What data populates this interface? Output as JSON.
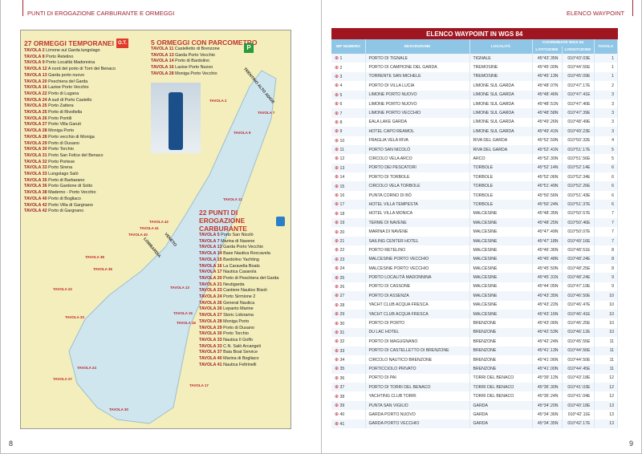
{
  "header": {
    "left": "PUNTI DI EROGAZIONE CARBURANTE E ORMEGGI",
    "right": "ELENCO WAYPOINT"
  },
  "page_numbers": {
    "left": "8",
    "right": "9"
  },
  "colors": {
    "brand_red": "#a01620",
    "header_blue": "#8fc6e6",
    "map_land": "#f4eebc",
    "map_water": "#cfe6ee"
  },
  "temporanei": {
    "title": "27 ORMEGGI TEMPORANEI",
    "badge": "O.T.",
    "items": [
      [
        "TAVOLA 2",
        "Limone sul Garda lungolago"
      ],
      [
        "TAVOLA 8",
        "Porto Retelino"
      ],
      [
        "TAVOLA 9",
        "Porto Località Madonnina"
      ],
      [
        "TAVOLA 12",
        "A nord del porto di Torri del Benaco"
      ],
      [
        "TAVOLA 13",
        "Garda porto nuovo"
      ],
      [
        "TAVOLA 20",
        "Peschiera del Garda"
      ],
      [
        "TAVOLA 16",
        "Lazise Porto Vecchio"
      ],
      [
        "TAVOLA 22",
        "Porto di Lugana"
      ],
      [
        "TAVOLA 24",
        "A sud di Porto Castello"
      ],
      [
        "TAVOLA 25",
        "Porto Zattera"
      ],
      [
        "TAVOLA 25",
        "Porto di Rivoltella"
      ],
      [
        "TAVOLA 26",
        "Porto Pontili"
      ],
      [
        "TAVOLA 27",
        "Porto Villa Garuti"
      ],
      [
        "TAVOLA 28",
        "Moniga Porto"
      ],
      [
        "TAVOLA 28",
        "Porto vecchio di Moniga"
      ],
      [
        "TAVOLA 29",
        "Porto di Dusano"
      ],
      [
        "TAVOLA 30",
        "Porto Torchio"
      ],
      [
        "TAVOLA 31",
        "Porto San Felice del Benaco"
      ],
      [
        "TAVOLA 32",
        "Porto Portese"
      ],
      [
        "TAVOLA 33",
        "Porto Sirena"
      ],
      [
        "TAVOLA 33",
        "Lungolago Salò"
      ],
      [
        "TAVOLA 35",
        "Porto di Barbarano"
      ],
      [
        "TAVOLA 36",
        "Porto Gardone di Sotto"
      ],
      [
        "TAVOLA 38",
        "Maderno - Porto Vecchio"
      ],
      [
        "TAVOLA 40",
        "Porto di Bogliaco"
      ],
      [
        "TAVOLA 42",
        "Porto Villa di Gargnano"
      ],
      [
        "TAVOLA 42",
        "Porto di Gargnano"
      ]
    ]
  },
  "parcometro": {
    "title": "5 ORMEGGI CON PARCOMETRO",
    "icon": "parking-icon",
    "items": [
      [
        "TAVOLA 11",
        "Castelletto di Brenzone"
      ],
      [
        "TAVOLA 13",
        "Garda Porto Vecchio"
      ],
      [
        "TAVOLA 14",
        "Porto di Bardolino"
      ],
      [
        "TAVOLA 16",
        "Lazise Porto Nuovo"
      ],
      [
        "TAVOLA 28",
        "Moniga Porto Vecchio"
      ]
    ]
  },
  "carburante": {
    "title": "22 PUNTI DI EROGAZIONE CARBURANTE",
    "icon": "fuel-pump-icon",
    "items": [
      [
        "TAVOLA 5",
        "Porto San Nicolò"
      ],
      [
        "TAVOLA 7",
        "Marina di Navene"
      ],
      [
        "TAVOLA 13",
        "Garda Porto Vecchio"
      ],
      [
        "TAVOLA 14",
        "Base Nautica Roccavela"
      ],
      [
        "TAVOLA 15",
        "Bardolino Yachting"
      ],
      [
        "TAVOLA 16",
        "La Caravella Boats"
      ],
      [
        "TAVOLA 17",
        "Nautica Casarola"
      ],
      [
        "TAVOLA 20",
        "Porto di Peschiera del Garda"
      ],
      [
        "TAVOLA 21",
        "Neutigarda"
      ],
      [
        "TAVOLA 23",
        "Cantiere Nautico Bisoli"
      ],
      [
        "TAVOLA 24",
        "Porto Sirmione 2"
      ],
      [
        "TAVOLA 26",
        "General Nautica"
      ],
      [
        "TAVOLA 26",
        "Lepanto Marine"
      ],
      [
        "TAVOLA 27",
        "Storic Lidorama"
      ],
      [
        "TAVOLA 28",
        "Moniga Porto"
      ],
      [
        "TAVOLA 29",
        "Porto di Dusano"
      ],
      [
        "TAVOLA 30",
        "Porto Torchio"
      ],
      [
        "TAVOLA 33",
        "Nautica Il Golfo"
      ],
      [
        "TAVOLA 33",
        "C.N. Salò Arcangeli"
      ],
      [
        "TAVOLA 37",
        "Baia Boat Service"
      ],
      [
        "TAVOLA 40",
        "Marina di Bogliaco"
      ],
      [
        "TAVOLA 41",
        "Nautica Feltrinelli"
      ]
    ]
  },
  "map_labels": [
    "TRENTINO ALTO ADIGE",
    "LOMBARDIA",
    "VENETO",
    "TAVOLA 2",
    "TAVOLA 7",
    "TAVOLA 9",
    "TAVOLA 11",
    "TAVOLA 42",
    "TAVOLA 41",
    "TAVOLA 40",
    "TAVOLA 13",
    "TAVOLA 15",
    "TAVOLA 16",
    "TAVOLA 17",
    "TAVOLA 22",
    "TAVOLA 24",
    "TAVOLA 27",
    "TAVOLA 30",
    "TAVOLA 33",
    "TAVOLA 36",
    "TAVOLA 38"
  ],
  "table": {
    "title": "ELENCO WAYPOINT IN WGS 84",
    "headers": {
      "num": "WP NUMERO",
      "desc": "DESCRIZIONE",
      "loc": "LOCALITÀ",
      "coord": "COORDINATE WGS 84",
      "lat": "LATITUDINE",
      "lon": "LONGITUDINE",
      "tav": "TAVOLA"
    },
    "rows": [
      [
        "1",
        "PORTO DI TIGNALE",
        "TIGNALE",
        "45°43'.35N",
        "010°43'.03E",
        "1"
      ],
      [
        "2",
        "PORTO DI CAMPIONE DEL GARDA",
        "TREMOSINE",
        "45°45'.00N",
        "010°44'.55E",
        "1"
      ],
      [
        "3",
        "TORRENTE SAN MICHELE",
        "TREMOSINE",
        "45°45'.13N",
        "010°45'.09E",
        "1"
      ],
      [
        "4",
        "PORTO DI VILLA LUCIA",
        "LIMONE SUL GARDA",
        "45°48'.07N",
        "010°47'.17E",
        "2"
      ],
      [
        "5",
        "LIMONE PORTO NUOVO",
        "LIMONE SUL GARDA",
        "45°48'.46N",
        "010°47'.41E",
        "3"
      ],
      [
        "6",
        "LIMONE PORTO NUOVO",
        "LIMONE SUL GARDA",
        "45°48'.51N",
        "010°47'.40E",
        "3"
      ],
      [
        "7",
        "LIMONE PORTO VECCHIO",
        "LIMONE SUL GARDA",
        "45°48'.58N",
        "010°47'.39E",
        "3"
      ],
      [
        "8",
        "EALA LAKE GARDA",
        "LIMONE SUL GARDA",
        "45°49'.26N",
        "010°48'.49E",
        "3"
      ],
      [
        "9",
        "HOTEL CAPO REAMOL",
        "LIMONE SUL GARDA",
        "45°49'.41N",
        "010°49'.23E",
        "3"
      ],
      [
        "10",
        "FRAGLIA VELA RIVA",
        "RIVA DEL GARDA",
        "45°52'.59N",
        "010°50'.32E",
        "4"
      ],
      [
        "11",
        "PORTO SAN NICOLÒ",
        "RIVA DEL GARDA",
        "45°52'.41N",
        "010°51'.17E",
        "5"
      ],
      [
        "12",
        "CIRCOLO VELA ARCO",
        "ARCO",
        "45°52'.30N",
        "010°51'.56E",
        "5"
      ],
      [
        "13",
        "PORTO DEI PESCATORI",
        "TORBOLE",
        "45°52'.14N",
        "010°52'.14E",
        "6"
      ],
      [
        "14",
        "PORTO DI TORBOLE",
        "TORBOLE",
        "45°52'.06N",
        "010°52'.34E",
        "6"
      ],
      [
        "15",
        "CIRCOLO VELA TORBOLE",
        "TORBOLE",
        "45°51'.49N",
        "010°52'.26E",
        "6"
      ],
      [
        "16",
        "PUNTA CORNO DI BÒ",
        "TORBOLE",
        "45°50'.56N",
        "010°51'.43E",
        "6"
      ],
      [
        "17",
        "HOTEL VILLA TEMPESTA",
        "TORBOLE",
        "45°50'.24N",
        "010°51'.37E",
        "6"
      ],
      [
        "18",
        "HOTEL VILLA MONICA",
        "MALCESINE",
        "45°48'.35N",
        "010°50'.57E",
        "7"
      ],
      [
        "19",
        "TERME DI NAVENE",
        "MALCESINE",
        "45°48'.25N",
        "010°50'.46E",
        "7"
      ],
      [
        "20",
        "MARINA DI NAVENE",
        "MALCESINE",
        "45°47'.49N",
        "010°50'.07E",
        "7"
      ],
      [
        "21",
        "SAILING CENTER HOTEL",
        "MALCESINE",
        "45°47'.18N",
        "010°49'.16E",
        "7"
      ],
      [
        "22",
        "PORTO RETELINO",
        "MALCESINE",
        "45°46'.36N",
        "010°48'.51E",
        "8"
      ],
      [
        "23",
        "MALCESINE PORTO VECCHIO",
        "MALCESINE",
        "45°45'.48N",
        "010°48'.24E",
        "8"
      ],
      [
        "24",
        "MALCESINE PORTO VECCHIO",
        "MALCESINE",
        "45°45'.50N",
        "010°48'.25E",
        "8"
      ],
      [
        "25",
        "PORTO LOCALITÀ MADONNINA",
        "MALCESINE",
        "45°45'.31N",
        "010°48'.24E",
        "9"
      ],
      [
        "26",
        "PORTO DI CASSONE",
        "MALCESINE",
        "45°44'.05N",
        "010°47'.19E",
        "9"
      ],
      [
        "27",
        "PORTO DI ASSENZA",
        "MALCESINE",
        "45°43'.35N",
        "010°46'.50E",
        "10"
      ],
      [
        "28",
        "YACHT CLUB ACQUA FRESCA",
        "MALCESINE",
        "45°43'.22N",
        "010°46'.47E",
        "10"
      ],
      [
        "29",
        "YACHT CLUB ACQUA FRESCA",
        "MALCESINE",
        "45°43'.16N",
        "010°46'.41E",
        "10"
      ],
      [
        "30",
        "PORTO DI PORTO",
        "BRENZONE",
        "45°43'.06N",
        "010°46'.25E",
        "10"
      ],
      [
        "31",
        "DU LAC HOTEL",
        "BRENZONE",
        "45°42'.53N",
        "010°46'.12E",
        "10"
      ],
      [
        "32",
        "PORTO DI MAGUGNANO",
        "BRENZONE",
        "45°42'.24N",
        "010°45'.55E",
        "11"
      ],
      [
        "33",
        "PORTO DI CASTELLETTO DI BRENZONE",
        "BRENZONE",
        "45°41'.13N",
        "010°44'.56E",
        "11"
      ],
      [
        "34",
        "CIRCOLO NAUTICO BRENZONE",
        "BRENZONE",
        "45°41'.06N",
        "010°44'.50E",
        "11"
      ],
      [
        "35",
        "PORTICCIOLO PRIVATO",
        "BRENZONE",
        "45°41'.00N",
        "010°44'.45E",
        "11"
      ],
      [
        "36",
        "PORTO DI PAI",
        "TORRI DEL BENACO",
        "45°39'.12N",
        "010°43'.18E",
        "12"
      ],
      [
        "37",
        "PORTO DI TORRI DEL BENACO",
        "TORRI DEL BENACO",
        "45°36'.30N",
        "010°41'.03E",
        "12"
      ],
      [
        "38",
        "YACHTING CLUB TORRI",
        "TORRI DEL BENACO",
        "45°36'.24N",
        "010°41'.04E",
        "12"
      ],
      [
        "39",
        "PUNTA SAN VIGILIO",
        "GARDA",
        "45°34'.20N",
        "010°40'.18E",
        "13"
      ],
      [
        "40",
        "GARDA PORTO NUOVO",
        "GARDA",
        "45°34'.36N",
        "010°42'.11E",
        "13"
      ],
      [
        "41",
        "GARDA PORTO VECCHIO",
        "GARDA",
        "45°34'.35N",
        "010°42'.17E",
        "13"
      ]
    ]
  }
}
